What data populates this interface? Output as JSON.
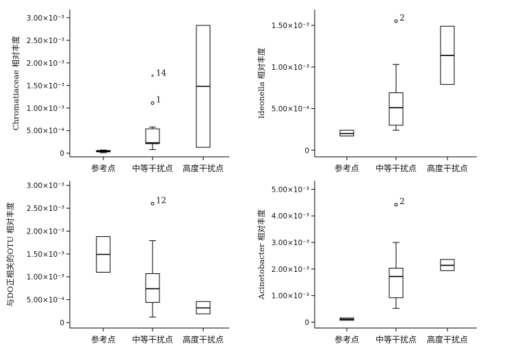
{
  "chart_data": [
    {
      "type": "box",
      "ylabel": "Chromatiaceae 相对丰度",
      "categories": [
        "参考点",
        "中等干扰点",
        "高度干扰点"
      ],
      "yticks": [
        0,
        0.0005,
        0.001,
        0.0015,
        0.002,
        0.0025,
        0.003
      ],
      "ytick_labels": [
        "0",
        "5.00×10⁻⁴",
        "1.00×10⁻³",
        "1.50×10⁻³",
        "2.00×10⁻³",
        "2.50×10⁻³",
        "3.00×10⁻³"
      ],
      "ylim": [
        -8e-05,
        0.00318
      ],
      "boxes": [
        {
          "category": "参考点",
          "whisker_low": 1e-05,
          "q1": 3e-05,
          "median": 4.5e-05,
          "q3": 6e-05,
          "whisker_high": 7e-05
        },
        {
          "category": "中等干扰点",
          "whisker_low": 8e-05,
          "q1": 0.00021,
          "median": 0.00023,
          "q3": 0.00054,
          "whisker_high": 0.00058
        },
        {
          "category": "高度干扰点",
          "whisker_low": 0.00013,
          "q1": 0.00013,
          "median": 0.00148,
          "q3": 0.00283,
          "whisker_high": 0.00283
        }
      ],
      "outliers": [
        {
          "category": "中等干扰点",
          "value": 0.0017,
          "label": "14",
          "marker": "star"
        },
        {
          "category": "中等干扰点",
          "value": 0.00111,
          "label": "1",
          "marker": "circle"
        }
      ]
    },
    {
      "type": "box",
      "ylabel": "Ideonella 相对丰度",
      "categories": [
        "参考点",
        "中等干扰点",
        "高度干扰点"
      ],
      "yticks": [
        0,
        0.0005,
        0.001,
        0.0015
      ],
      "ytick_labels": [
        "0",
        "5.00×10⁻⁴",
        "1.00×10⁻³",
        "1.50×10⁻³"
      ],
      "ylim": [
        -8e-05,
        0.00169
      ],
      "boxes": [
        {
          "category": "参考点",
          "whisker_low": 0.00017,
          "q1": 0.00017,
          "median": 0.0002,
          "q3": 0.00024,
          "whisker_high": 0.00024
        },
        {
          "category": "中等干扰点",
          "whisker_low": 0.00024,
          "q1": 0.0003,
          "median": 0.00051,
          "q3": 0.00069,
          "whisker_high": 0.00103
        },
        {
          "category": "高度干扰点",
          "whisker_low": 0.00079,
          "q1": 0.00079,
          "median": 0.00114,
          "q3": 0.00149,
          "whisker_high": 0.00149
        }
      ],
      "outliers": [
        {
          "category": "中等干扰点",
          "value": 0.00155,
          "label": "2",
          "marker": "circle"
        }
      ]
    },
    {
      "type": "box",
      "ylabel": "与DO正相关的OTU 相对丰度",
      "categories": [
        "参考点",
        "中等干扰点",
        "高度干扰点"
      ],
      "yticks": [
        0,
        0.0005,
        0.001,
        0.0015,
        0.002,
        0.0025,
        0.003
      ],
      "ytick_labels": [
        "0",
        "5.00×10⁻⁴",
        "1.00×10⁻³",
        "1.50×10⁻³",
        "2.00×10⁻³",
        "2.50×10⁻³",
        "3.00×10⁻³"
      ],
      "ylim": [
        -0.00012,
        0.0031
      ],
      "boxes": [
        {
          "category": "参考点",
          "whisker_low": 0.0011,
          "q1": 0.0011,
          "median": 0.00149,
          "q3": 0.00188,
          "whisker_high": 0.00188
        },
        {
          "category": "中等干扰点",
          "whisker_low": 0.00012,
          "q1": 0.00044,
          "median": 0.00074,
          "q3": 0.00107,
          "whisker_high": 0.00179
        },
        {
          "category": "高度干扰点",
          "whisker_low": 0.00019,
          "q1": 0.00019,
          "median": 0.00032,
          "q3": 0.00046,
          "whisker_high": 0.00046
        }
      ],
      "outliers": [
        {
          "category": "中等干扰点",
          "value": 0.0026,
          "label": "12",
          "marker": "circle"
        }
      ]
    },
    {
      "type": "box",
      "ylabel": "Acinetobacter 相对丰度",
      "categories": [
        "参考点",
        "中等干扰点",
        "高度干扰点"
      ],
      "yticks": [
        0,
        0.001,
        0.002,
        0.003,
        0.004,
        0.005
      ],
      "ytick_labels": [
        "0",
        "1.00×10⁻³",
        "2.00×10⁻³",
        "3.00×10⁻³",
        "4.00×10⁻³",
        "5.00×10⁻³"
      ],
      "ylim": [
        -0.00022,
        0.00532
      ],
      "boxes": [
        {
          "category": "参考点",
          "whisker_low": 7e-05,
          "q1": 7e-05,
          "median": 0.00011,
          "q3": 0.00016,
          "whisker_high": 0.00016
        },
        {
          "category": "中等干扰点",
          "whisker_low": 0.00052,
          "q1": 0.00092,
          "median": 0.00172,
          "q3": 0.00203,
          "whisker_high": 0.003
        },
        {
          "category": "高度干扰点",
          "whisker_low": 0.00194,
          "q1": 0.00194,
          "median": 0.00214,
          "q3": 0.00236,
          "whisker_high": 0.00236
        }
      ],
      "outliers": [
        {
          "category": "中等干扰点",
          "value": 0.00442,
          "label": "2",
          "marker": "circle"
        }
      ]
    }
  ]
}
